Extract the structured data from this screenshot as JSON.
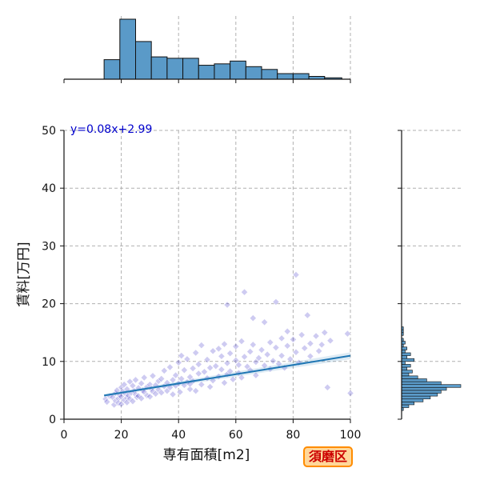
{
  "chart_data": {
    "type": "scatter",
    "xlabel": "専有面積[m2]",
    "ylabel": "賃料[万円]",
    "xlim": [
      0,
      100
    ],
    "ylim": [
      0,
      50
    ],
    "x_ticks": [
      "0",
      "20",
      "40",
      "60",
      "80",
      "100"
    ],
    "y_ticks": [
      "0",
      "10",
      "20",
      "30",
      "40",
      "50"
    ],
    "grid": true,
    "regression": {
      "label": "y=0.08x+2.99",
      "slope": 0.08,
      "intercept": 2.99,
      "x_range": [
        14,
        100
      ]
    },
    "badge": "須磨区",
    "colors": {
      "points": "#3a2fc8",
      "regression_line": "#1f77b4",
      "equation": "#0000cc",
      "histogram": "#5a9ac8"
    },
    "x_histogram": {
      "bins": [
        {
          "x0": 14,
          "x1": 19.5,
          "count": 14
        },
        {
          "x0": 19.5,
          "x1": 25,
          "count": 43
        },
        {
          "x0": 25,
          "x1": 30.5,
          "count": 27
        },
        {
          "x0": 30.5,
          "x1": 36,
          "count": 16
        },
        {
          "x0": 36,
          "x1": 41.5,
          "count": 15
        },
        {
          "x0": 41.5,
          "x1": 47,
          "count": 15
        },
        {
          "x0": 47,
          "x1": 52.5,
          "count": 10
        },
        {
          "x0": 52.5,
          "x1": 58,
          "count": 11
        },
        {
          "x0": 58,
          "x1": 63.5,
          "count": 13
        },
        {
          "x0": 63.5,
          "x1": 69,
          "count": 9
        },
        {
          "x0": 69,
          "x1": 74.5,
          "count": 7
        },
        {
          "x0": 74.5,
          "x1": 80,
          "count": 4
        },
        {
          "x0": 80,
          "x1": 85.5,
          "count": 4
        },
        {
          "x0": 85.5,
          "x1": 91,
          "count": 2
        },
        {
          "x0": 91,
          "x1": 97,
          "count": 1
        }
      ]
    },
    "y_histogram": {
      "bins": [
        {
          "y0": 1.5,
          "y1": 2.0,
          "count": 1
        },
        {
          "y0": 2.0,
          "y1": 2.5,
          "count": 4
        },
        {
          "y0": 2.5,
          "y1": 3.0,
          "count": 7
        },
        {
          "y0": 3.0,
          "y1": 3.5,
          "count": 12
        },
        {
          "y0": 3.5,
          "y1": 4.0,
          "count": 16
        },
        {
          "y0": 4.0,
          "y1": 4.5,
          "count": 20
        },
        {
          "y0": 4.5,
          "y1": 5.0,
          "count": 22
        },
        {
          "y0": 5.0,
          "y1": 5.5,
          "count": 25
        },
        {
          "y0": 5.5,
          "y1": 6.0,
          "count": 33
        },
        {
          "y0": 6.0,
          "y1": 6.5,
          "count": 22
        },
        {
          "y0": 6.5,
          "y1": 7.0,
          "count": 14
        },
        {
          "y0": 7.0,
          "y1": 7.5,
          "count": 9
        },
        {
          "y0": 7.5,
          "y1": 8.0,
          "count": 4
        },
        {
          "y0": 8.0,
          "y1": 8.5,
          "count": 6
        },
        {
          "y0": 8.5,
          "y1": 9.0,
          "count": 3
        },
        {
          "y0": 9.0,
          "y1": 9.5,
          "count": 5
        },
        {
          "y0": 9.5,
          "y1": 10.0,
          "count": 2
        },
        {
          "y0": 10.0,
          "y1": 10.5,
          "count": 7
        },
        {
          "y0": 10.5,
          "y1": 11.0,
          "count": 3
        },
        {
          "y0": 11.0,
          "y1": 11.5,
          "count": 5
        },
        {
          "y0": 11.5,
          "y1": 12.0,
          "count": 2
        },
        {
          "y0": 12.0,
          "y1": 12.5,
          "count": 3
        },
        {
          "y0": 12.5,
          "y1": 13.0,
          "count": 1
        },
        {
          "y0": 13.0,
          "y1": 13.5,
          "count": 2
        },
        {
          "y0": 13.5,
          "y1": 14.0,
          "count": 1
        },
        {
          "y0": 14.5,
          "y1": 15.0,
          "count": 1
        },
        {
          "y0": 15.0,
          "y1": 15.5,
          "count": 1
        },
        {
          "y0": 15.5,
          "y1": 16.0,
          "count": 1
        }
      ]
    },
    "points": [
      [
        14.5,
        3.5
      ],
      [
        15,
        3.0
      ],
      [
        16,
        4.0
      ],
      [
        17,
        3.8
      ],
      [
        17.5,
        2.5
      ],
      [
        18,
        4.5
      ],
      [
        18,
        3.2
      ],
      [
        18.5,
        5.0
      ],
      [
        19,
        3.6
      ],
      [
        19,
        2.8
      ],
      [
        19.5,
        4.2
      ],
      [
        20,
        3.9
      ],
      [
        20,
        5.5
      ],
      [
        20,
        2.6
      ],
      [
        20.5,
        4.8
      ],
      [
        21,
        3.3
      ],
      [
        21,
        6.0
      ],
      [
        21.5,
        4.4
      ],
      [
        22,
        3.7
      ],
      [
        22,
        5.2
      ],
      [
        22,
        2.9
      ],
      [
        22.5,
        4.1
      ],
      [
        23,
        6.5
      ],
      [
        23,
        3.5
      ],
      [
        23.5,
        4.6
      ],
      [
        24,
        5.8
      ],
      [
        24,
        3.1
      ],
      [
        24.5,
        4.9
      ],
      [
        25,
        4.3
      ],
      [
        25,
        6.8
      ],
      [
        25.5,
        3.8
      ],
      [
        26,
        5.4
      ],
      [
        26,
        4.0
      ],
      [
        27,
        6.2
      ],
      [
        27,
        3.6
      ],
      [
        27.5,
        5.0
      ],
      [
        28,
        4.7
      ],
      [
        28,
        7.2
      ],
      [
        29,
        5.6
      ],
      [
        29,
        4.1
      ],
      [
        30,
        6.0
      ],
      [
        30,
        3.9
      ],
      [
        30.5,
        5.3
      ],
      [
        31,
        4.8
      ],
      [
        31,
        7.5
      ],
      [
        32,
        5.9
      ],
      [
        32,
        4.4
      ],
      [
        33,
        6.6
      ],
      [
        33,
        5.1
      ],
      [
        34,
        4.6
      ],
      [
        34,
        7.0
      ],
      [
        35,
        5.7
      ],
      [
        35,
        8.4
      ],
      [
        36,
        6.3
      ],
      [
        36,
        4.9
      ],
      [
        37,
        9.0
      ],
      [
        37,
        5.5
      ],
      [
        38,
        6.8
      ],
      [
        38,
        4.3
      ],
      [
        39,
        7.6
      ],
      [
        39,
        5.8
      ],
      [
        40,
        6.2
      ],
      [
        40,
        9.8
      ],
      [
        40.5,
        4.7
      ],
      [
        41,
        11.0
      ],
      [
        41,
        7.0
      ],
      [
        42,
        5.9
      ],
      [
        42,
        8.5
      ],
      [
        43,
        6.4
      ],
      [
        43,
        10.4
      ],
      [
        44,
        7.3
      ],
      [
        44,
        5.2
      ],
      [
        45,
        8.8
      ],
      [
        45,
        6.6
      ],
      [
        46,
        11.5
      ],
      [
        46,
        4.9
      ],
      [
        47,
        7.9
      ],
      [
        47,
        9.5
      ],
      [
        48,
        6.0
      ],
      [
        48,
        12.8
      ],
      [
        49,
        8.2
      ],
      [
        50,
        7.1
      ],
      [
        50,
        10.3
      ],
      [
        51,
        5.6
      ],
      [
        51,
        8.9
      ],
      [
        52,
        11.8
      ],
      [
        52,
        6.7
      ],
      [
        53,
        9.2
      ],
      [
        54,
        7.4
      ],
      [
        54,
        12.2
      ],
      [
        55,
        8.6
      ],
      [
        55,
        10.9
      ],
      [
        56,
        6.3
      ],
      [
        56,
        13.0
      ],
      [
        57,
        9.7
      ],
      [
        57,
        7.8
      ],
      [
        58,
        11.4
      ],
      [
        58,
        8.3
      ],
      [
        59,
        6.9
      ],
      [
        60,
        10.2
      ],
      [
        60,
        12.6
      ],
      [
        61,
        8.0
      ],
      [
        61,
        9.4
      ],
      [
        62,
        13.5
      ],
      [
        62,
        7.2
      ],
      [
        63,
        10.8
      ],
      [
        63,
        22.0
      ],
      [
        64,
        9.1
      ],
      [
        65,
        11.7
      ],
      [
        65,
        8.5
      ],
      [
        66,
        12.9
      ],
      [
        66,
        17.5
      ],
      [
        67,
        9.9
      ],
      [
        67,
        7.6
      ],
      [
        68,
        10.6
      ],
      [
        69,
        12.0
      ],
      [
        70,
        9.3
      ],
      [
        70,
        16.8
      ],
      [
        71,
        11.2
      ],
      [
        72,
        8.7
      ],
      [
        72,
        13.3
      ],
      [
        73,
        10.1
      ],
      [
        74,
        20.3
      ],
      [
        74,
        12.4
      ],
      [
        75,
        9.6
      ],
      [
        76,
        14.0
      ],
      [
        76,
        11.0
      ],
      [
        77,
        8.9
      ],
      [
        78,
        12.7
      ],
      [
        78,
        15.2
      ],
      [
        79,
        10.4
      ],
      [
        80,
        13.8
      ],
      [
        81,
        11.6
      ],
      [
        81,
        25.0
      ],
      [
        82,
        9.8
      ],
      [
        83,
        14.6
      ],
      [
        84,
        12.3
      ],
      [
        85,
        18.0
      ],
      [
        86,
        10.9
      ],
      [
        86,
        13.1
      ],
      [
        88,
        14.4
      ],
      [
        89,
        11.8
      ],
      [
        90,
        12.9
      ],
      [
        91,
        15.0
      ],
      [
        92,
        5.5
      ],
      [
        93,
        13.6
      ],
      [
        99,
        14.8
      ],
      [
        100,
        4.5
      ],
      [
        57,
        19.8
      ],
      [
        44,
        6.1
      ]
    ]
  }
}
